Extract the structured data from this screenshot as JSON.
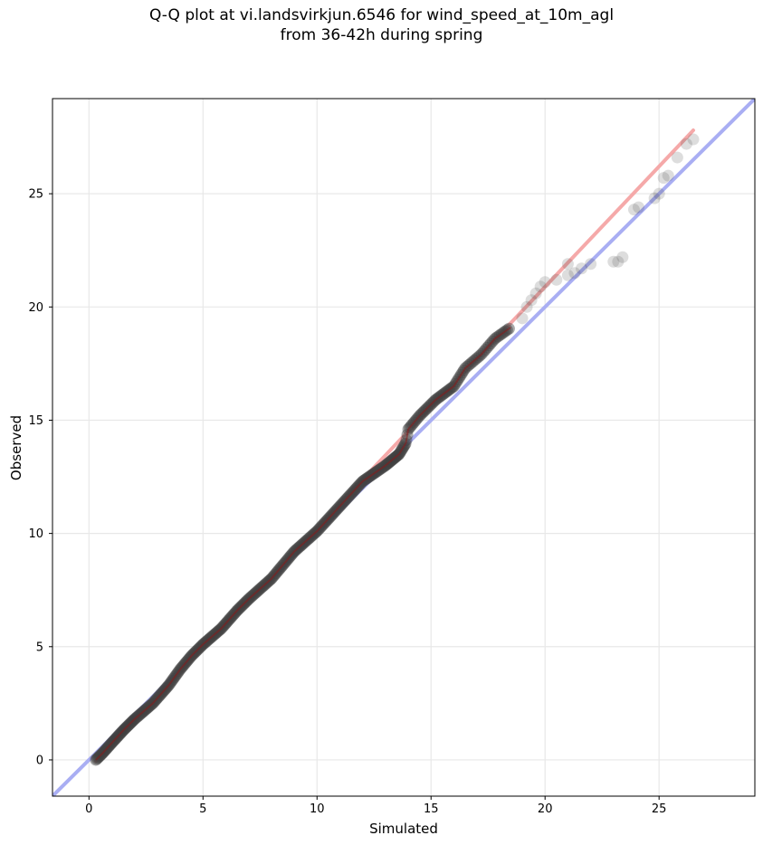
{
  "chart_data": {
    "type": "scatter",
    "title_line1": "Q-Q plot at vi.landsvirkjun.6546 for wind_speed_at_10m_agl",
    "title_line2": "from 36-42h during spring",
    "xlabel": "Simulated",
    "ylabel": "Observed",
    "xlim": [
      -1.6,
      29.2
    ],
    "ylim": [
      -1.6,
      29.2
    ],
    "xticks": [
      0,
      5,
      10,
      15,
      20,
      25
    ],
    "yticks": [
      0,
      5,
      10,
      15,
      20,
      25
    ],
    "grid": true,
    "reference_line": {
      "label": "",
      "color": "#a9aef3",
      "slope": 1,
      "intercept": 0
    },
    "fit_line": {
      "label": "",
      "color": "#f5a9a9",
      "x": [
        0.3,
        26.5
      ],
      "y": [
        -0.05,
        27.8
      ]
    },
    "point_color": "#404040",
    "dense_segments": [
      {
        "x0": 0.3,
        "x1": 2.0,
        "n": 40,
        "rows": [
          [
            0.3,
            0.0
          ],
          [
            0.6,
            0.3
          ],
          [
            1.0,
            0.75
          ],
          [
            1.5,
            1.3
          ],
          [
            2.0,
            1.8
          ]
        ]
      },
      {
        "x0": 2.0,
        "x1": 4.5,
        "n": 50,
        "rows": [
          [
            2.0,
            1.8
          ],
          [
            2.8,
            2.5
          ],
          [
            3.5,
            3.3
          ],
          [
            4.0,
            4.0
          ],
          [
            4.5,
            4.6
          ]
        ]
      },
      {
        "x0": 4.5,
        "x1": 7.0,
        "n": 50,
        "rows": [
          [
            4.5,
            4.6
          ],
          [
            5.0,
            5.1
          ],
          [
            5.8,
            5.8
          ],
          [
            6.5,
            6.6
          ],
          [
            7.0,
            7.1
          ]
        ]
      },
      {
        "x0": 7.0,
        "x1": 10.0,
        "n": 55,
        "rows": [
          [
            7.0,
            7.1
          ],
          [
            8.0,
            8.0
          ],
          [
            9.0,
            9.2
          ],
          [
            10.0,
            10.1
          ]
        ]
      },
      {
        "x0": 10.0,
        "x1": 13.0,
        "n": 55,
        "rows": [
          [
            10.0,
            10.1
          ],
          [
            11.0,
            11.2
          ],
          [
            12.0,
            12.3
          ],
          [
            13.0,
            13.0
          ]
        ]
      },
      {
        "x0": 13.0,
        "x1": 14.0,
        "n": 25,
        "rows": [
          [
            13.0,
            13.0
          ],
          [
            13.6,
            13.5
          ],
          [
            13.9,
            14.0
          ],
          [
            14.0,
            14.6
          ]
        ]
      },
      {
        "x0": 14.0,
        "x1": 16.5,
        "n": 40,
        "rows": [
          [
            14.0,
            14.6
          ],
          [
            14.5,
            15.2
          ],
          [
            15.2,
            15.9
          ],
          [
            16.0,
            16.5
          ],
          [
            16.5,
            17.3
          ]
        ]
      },
      {
        "x0": 16.5,
        "x1": 18.5,
        "n": 25,
        "rows": [
          [
            16.5,
            17.3
          ],
          [
            17.2,
            17.9
          ],
          [
            17.8,
            18.6
          ],
          [
            18.5,
            19.1
          ]
        ]
      }
    ],
    "tail_points": [
      [
        19.0,
        19.5
      ],
      [
        19.2,
        20.0
      ],
      [
        19.4,
        20.3
      ],
      [
        19.6,
        20.6
      ],
      [
        19.8,
        20.9
      ],
      [
        20.0,
        21.1
      ],
      [
        20.5,
        21.2
      ],
      [
        21.0,
        21.4
      ],
      [
        21.3,
        21.5
      ],
      [
        21.6,
        21.7
      ],
      [
        21.0,
        21.9
      ],
      [
        22.0,
        21.9
      ],
      [
        23.2,
        22.0
      ],
      [
        23.4,
        22.2
      ],
      [
        23.0,
        22.0
      ],
      [
        23.9,
        24.3
      ],
      [
        24.1,
        24.4
      ],
      [
        24.8,
        24.8
      ],
      [
        25.0,
        25.0
      ],
      [
        25.2,
        25.7
      ],
      [
        25.4,
        25.8
      ],
      [
        25.8,
        26.6
      ],
      [
        26.2,
        27.2
      ],
      [
        26.5,
        27.4
      ]
    ]
  }
}
